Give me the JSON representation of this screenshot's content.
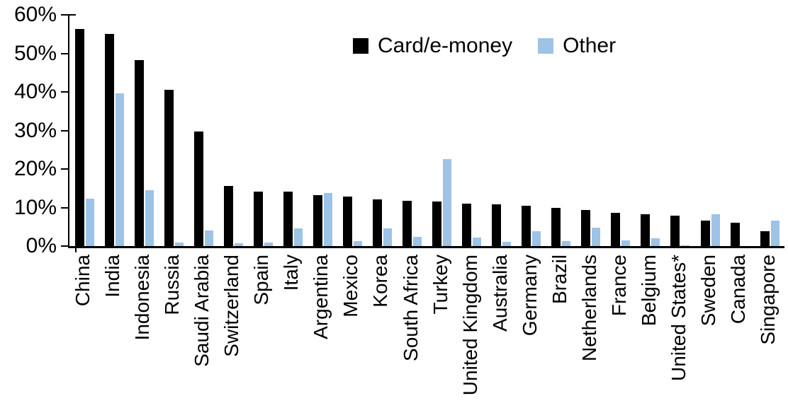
{
  "chart_data": {
    "type": "bar",
    "title": "",
    "categories": [
      "China",
      "India",
      "Indonesia",
      "Russia",
      "Saudi Arabia",
      "Switzerland",
      "Spain",
      "Italy",
      "Argentina",
      "Mexico",
      "Korea",
      "South Africa",
      "Turkey",
      "United Kingdom",
      "Australia",
      "Germany",
      "Brazil",
      "Netherlands",
      "France",
      "Belgium",
      "United States*",
      "Sweden",
      "Canada",
      "Singapore"
    ],
    "series": [
      {
        "name": "Card/e-money",
        "color": "#000000",
        "values": [
          56.3,
          55.0,
          48.2,
          40.5,
          29.8,
          15.6,
          14.2,
          14.1,
          13.3,
          12.8,
          12.2,
          11.7,
          11.5,
          11.0,
          10.8,
          10.5,
          10.0,
          9.3,
          8.6,
          8.2,
          7.9,
          6.6,
          6.0,
          3.8
        ]
      },
      {
        "name": "Other",
        "color": "#9DC3E6",
        "values": [
          12.3,
          39.7,
          14.5,
          1.0,
          4.0,
          0.7,
          1.0,
          4.5,
          13.7,
          1.2,
          4.5,
          2.3,
          22.5,
          2.2,
          1.1,
          3.9,
          1.2,
          4.8,
          1.5,
          2.0,
          0.2,
          8.2,
          0.0,
          6.6
        ]
      }
    ],
    "xlabel": "",
    "ylabel": "",
    "ylim": [
      0,
      60
    ],
    "ytick_step": 10,
    "ytick_labels": [
      "0%",
      "10%",
      "20%",
      "30%",
      "40%",
      "50%",
      "60%"
    ],
    "legend_position": "top-center",
    "grid": false,
    "bar_colors": {
      "card_e_money": "#000000",
      "other": "#9DC3E6"
    }
  }
}
